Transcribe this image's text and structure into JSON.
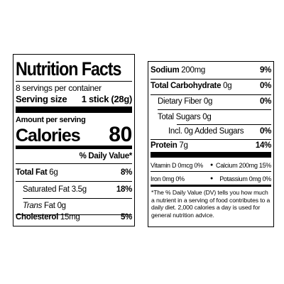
{
  "left": {
    "title": "Nutrition Facts",
    "servings": "8 servings per container",
    "serving_size_label": "Serving size",
    "serving_size": "1 stick (28g)",
    "amount_label": "Amount per serving",
    "calories_label": "Calories",
    "calories": 80,
    "dv_header": "% Daily Value*",
    "total_fat": {
      "name": "Total Fat",
      "amount": "6g",
      "dv": "8%"
    },
    "saturated_fat": {
      "name": "Saturated Fat",
      "amount": "3.5g",
      "dv": "18%"
    },
    "trans_fat": {
      "name_italic": "Trans",
      "name": "Fat",
      "amount": "0g"
    },
    "cholesterol": {
      "name": "Cholesterol",
      "amount": "15mg",
      "dv": "5%"
    }
  },
  "right": {
    "sodium": {
      "name": "Sodium",
      "amount": "200mg",
      "dv": "9%"
    },
    "total_carbohydrate": {
      "name": "Total Carbohydrate",
      "amount": "0g",
      "dv": "0%"
    },
    "dietary_fiber": {
      "name": "Dietary Fiber",
      "amount": "0g",
      "dv": "0%"
    },
    "total_sugars": {
      "name": "Total Sugars",
      "amount": "0g"
    },
    "added_sugars": {
      "prefix": "Incl.",
      "amount": "0g",
      "name": "Added Sugars",
      "dv": "0%"
    },
    "protein": {
      "name": "Protein",
      "amount": "7g",
      "dv": "14%"
    },
    "vitamins": [
      {
        "name": "Vitamin D",
        "amount": "0mcg",
        "dv": "0%"
      },
      {
        "name": "Calcium",
        "amount": "200mg",
        "dv": "15%"
      },
      {
        "name": "Iron",
        "amount": "0mg",
        "dv": "0%"
      },
      {
        "name": "Potassium",
        "amount": "0mg",
        "dv": "0%"
      }
    ],
    "footnote": "*The % Daily Value (DV) tells you how much a nutrient in a serving of food contributes to a daily diet. 2,000 calories a day is used for general nutrition advice."
  }
}
